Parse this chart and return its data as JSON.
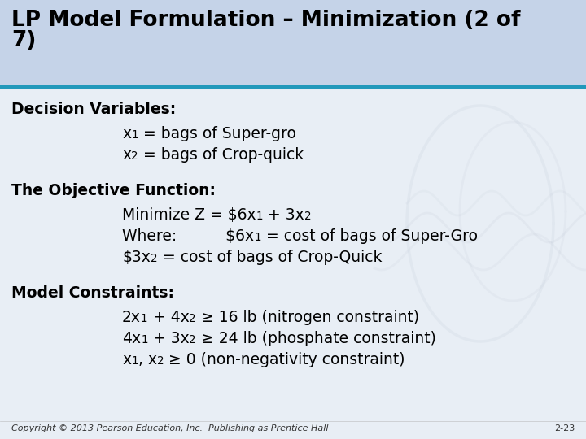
{
  "title_line1": "LP Model Formulation – Minimization (2 of",
  "title_line2": "7)",
  "title_bg": "#c5d3e8",
  "body_bg": "#e8eef5",
  "separator_color": "#2299bb",
  "font_color": "#000000",
  "footer_text": "Copyright © 2013 Pearson Education, Inc.  Publishing as Prentice Hall",
  "footer_right": "2-23",
  "title_fontsize": 19,
  "body_fontsize": 13.5,
  "header_fontsize": 13.5
}
